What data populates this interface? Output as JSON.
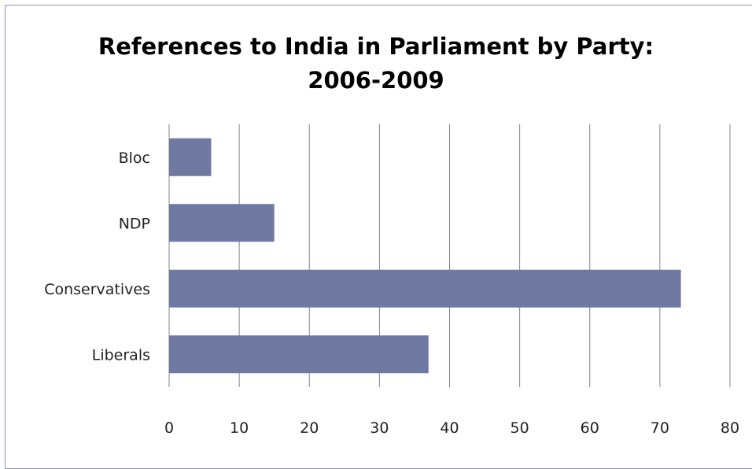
{
  "chart_data": {
    "type": "bar",
    "orientation": "horizontal",
    "title_lines": [
      "References to India in Parliament by Party:",
      "2006-2009"
    ],
    "categories": [
      "Bloc",
      "NDP",
      "Conservatives",
      "Liberals"
    ],
    "values": [
      6,
      15,
      73,
      37
    ],
    "xlim": [
      0,
      80
    ],
    "xticks": [
      0,
      10,
      20,
      30,
      40,
      50,
      60,
      70,
      80
    ],
    "grid": true,
    "bar_color": "#7079a1",
    "grid_color": "#868686"
  }
}
